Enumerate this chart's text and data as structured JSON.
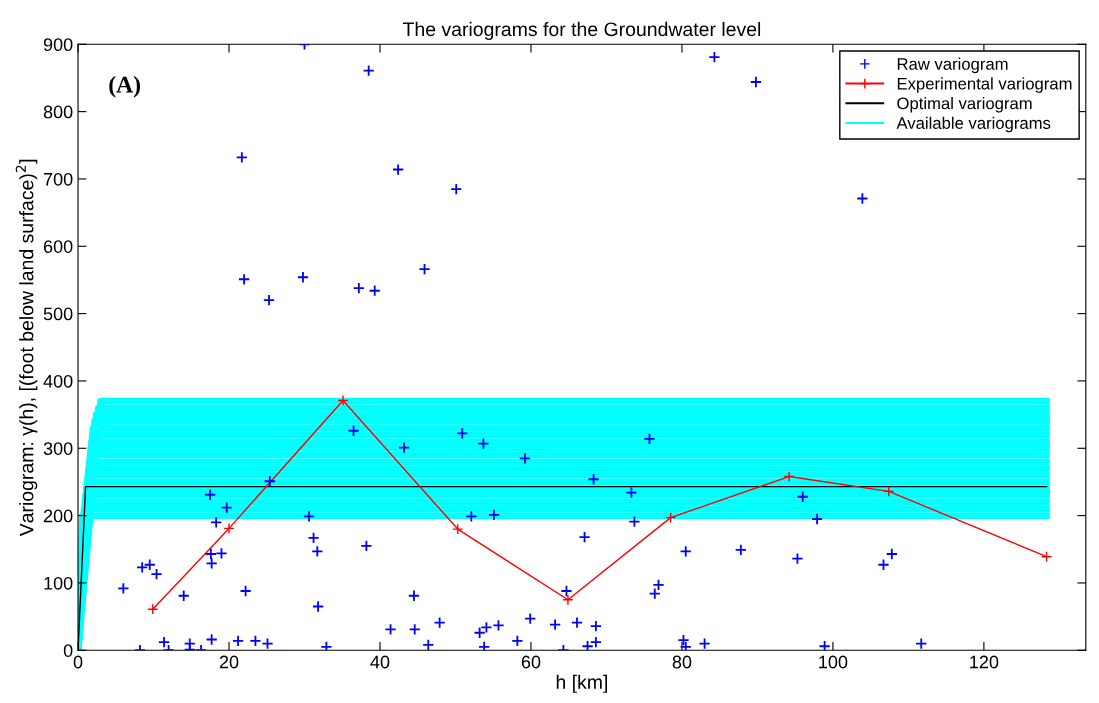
{
  "chart_data": {
    "type": "scatter",
    "title": "The variograms for the Groundwater level",
    "xlabel": "h [km]",
    "ylabel": "Variogram: γ(h), [(foot below land surface)$^{2}$]",
    "annotations": [
      "(A)"
    ],
    "xlim": [
      0,
      133.5
    ],
    "ylim": [
      0,
      900
    ],
    "xticks": [
      0,
      20,
      40,
      60,
      80,
      100,
      120
    ],
    "yticks": [
      0,
      100,
      200,
      300,
      400,
      500,
      600,
      700,
      800,
      900
    ],
    "grid": false,
    "legend": "top right",
    "series": [
      {
        "name": "Raw variogram",
        "color": "#0000ff",
        "marker": "cross",
        "x": [
          30.0,
          38.5,
          84.3,
          89.8,
          21.7,
          42.4,
          50.1,
          103.9,
          22.0,
          25.3,
          29.8,
          37.2,
          39.3,
          45.9,
          36.5,
          43.2,
          50.9,
          53.7,
          59.2,
          25.4,
          17.5,
          19.7,
          18.3,
          30.6,
          52.1,
          55.1,
          31.2,
          31.7,
          38.2,
          17.6,
          19.0,
          17.7,
          8.5,
          9.5,
          10.4,
          6.0,
          14.0,
          22.2,
          31.8,
          44.5,
          64.7,
          11.4,
          14.8,
          17.7,
          21.2,
          23.5,
          25.1,
          8.2,
          12.0,
          14.8,
          16.3,
          32.9,
          41.4,
          44.6,
          47.9,
          46.4,
          53.2,
          54.1,
          55.7,
          53.8,
          58.2,
          59.9,
          63.2,
          64.3,
          66.1,
          75.7,
          68.3,
          73.3,
          73.7,
          67.1,
          96.0,
          97.9,
          80.5,
          87.8,
          95.3,
          107.8,
          106.7,
          76.9,
          76.4,
          68.6,
          68.6,
          67.5,
          80.2,
          80.5,
          83.0,
          98.9,
          111.7
        ],
        "values": [
          900,
          861,
          881,
          844,
          732,
          714,
          685,
          671,
          551,
          520,
          554,
          538,
          534,
          566,
          326,
          301,
          322,
          307,
          285,
          251,
          231,
          212,
          190,
          199,
          199,
          201,
          167,
          147,
          155,
          143,
          144,
          129,
          123,
          127,
          113,
          92,
          81,
          88,
          65,
          81,
          88,
          12,
          10,
          16,
          14,
          14,
          10,
          0,
          0,
          1,
          0,
          5,
          31,
          31,
          41,
          8,
          26,
          34,
          37,
          5,
          14,
          47,
          38,
          0,
          41,
          314,
          254,
          234,
          191,
          168,
          228,
          195,
          147,
          149,
          136,
          143,
          127,
          97,
          84,
          36,
          12,
          6,
          15,
          5,
          10,
          6,
          10
        ]
      },
      {
        "name": "Experimental variogram",
        "type": "line",
        "color": "#ff0000",
        "marker": "cross",
        "line_style": "solid",
        "x": [
          9.9,
          20.0,
          35.1,
          50.3,
          64.9,
          78.5,
          94.2,
          107.4,
          128.3
        ],
        "values": [
          61,
          181,
          371,
          180,
          75,
          197,
          258,
          236,
          139
        ]
      },
      {
        "name": "Optimal variogram",
        "type": "line",
        "color": "#000000",
        "marker": "none",
        "line_style": "solid",
        "x": [
          0,
          1.0,
          128.3
        ],
        "values": [
          0,
          243,
          243
        ]
      },
      {
        "name": "Available variograms",
        "type": "line",
        "color": "#00ffff",
        "marker": "none",
        "line_style": "solid",
        "x": [
          0,
          0.6,
          128.3
        ],
        "values": [
          0,
          200,
          200
        ]
      },
      {
        "type": "line",
        "color": "#00ffff",
        "marker": "none",
        "line_style": "solid",
        "x": [
          0,
          0.8,
          128.3
        ],
        "values": [
          0,
          210,
          210
        ]
      },
      {
        "type": "line",
        "color": "#00ffff",
        "marker": "none",
        "line_style": "solid",
        "x": [
          0,
          0.9,
          128.3
        ],
        "values": [
          0,
          220,
          220
        ]
      },
      {
        "type": "line",
        "color": "#00ffff",
        "marker": "none",
        "line_style": "solid",
        "x": [
          0,
          1.0,
          128.3
        ],
        "values": [
          0,
          230,
          230
        ]
      },
      {
        "type": "line",
        "color": "#00ffff",
        "marker": "none",
        "line_style": "solid",
        "x": [
          0,
          1.1,
          128.3
        ],
        "values": [
          0,
          240,
          240
        ]
      },
      {
        "type": "line",
        "color": "#00ffff",
        "marker": "none",
        "line_style": "solid",
        "x": [
          0,
          1.2,
          128.3
        ],
        "values": [
          0,
          250,
          250
        ]
      },
      {
        "type": "line",
        "color": "#00ffff",
        "marker": "none",
        "line_style": "solid",
        "x": [
          0,
          1.3,
          128.3
        ],
        "values": [
          0,
          260,
          260
        ]
      },
      {
        "type": "line",
        "color": "#00ffff",
        "marker": "none",
        "line_style": "solid",
        "x": [
          0,
          1.4,
          128.3
        ],
        "values": [
          0,
          270,
          270
        ]
      },
      {
        "type": "line",
        "color": "#00ffff",
        "marker": "none",
        "line_style": "solid",
        "x": [
          0,
          1.5,
          128.3
        ],
        "values": [
          0,
          280,
          280
        ]
      },
      {
        "type": "line",
        "color": "#00ffff",
        "marker": "none",
        "line_style": "solid",
        "x": [
          0,
          1.6,
          128.3
        ],
        "values": [
          0,
          290,
          290
        ]
      },
      {
        "type": "line",
        "color": "#00ffff",
        "marker": "none",
        "line_style": "solid",
        "x": [
          0,
          1.7,
          128.3
        ],
        "values": [
          0,
          300,
          300
        ]
      },
      {
        "type": "line",
        "color": "#00ffff",
        "marker": "none",
        "line_style": "solid",
        "x": [
          0,
          1.8,
          128.3
        ],
        "values": [
          0,
          310,
          310
        ]
      },
      {
        "type": "line",
        "color": "#00ffff",
        "marker": "none",
        "line_style": "solid",
        "x": [
          0,
          1.9,
          128.3
        ],
        "values": [
          0,
          320,
          320
        ]
      },
      {
        "type": "line",
        "color": "#00ffff",
        "marker": "none",
        "line_style": "solid",
        "x": [
          0,
          2.0,
          128.3
        ],
        "values": [
          0,
          330,
          330
        ]
      },
      {
        "type": "line",
        "color": "#00ffff",
        "marker": "none",
        "line_style": "solid",
        "x": [
          0,
          2.2,
          128.3
        ],
        "values": [
          0,
          340,
          340
        ]
      },
      {
        "type": "line",
        "color": "#00ffff",
        "marker": "none",
        "line_style": "solid",
        "x": [
          0,
          2.4,
          128.3
        ],
        "values": [
          0,
          350,
          350
        ]
      },
      {
        "type": "line",
        "color": "#00ffff",
        "marker": "none",
        "line_style": "solid",
        "x": [
          0,
          2.7,
          128.3
        ],
        "values": [
          0,
          360,
          360
        ]
      },
      {
        "type": "line",
        "color": "#00ffff",
        "marker": "none",
        "line_style": "solid",
        "x": [
          0,
          3.0,
          128.3
        ],
        "values": [
          0,
          370,
          370
        ]
      }
    ]
  }
}
